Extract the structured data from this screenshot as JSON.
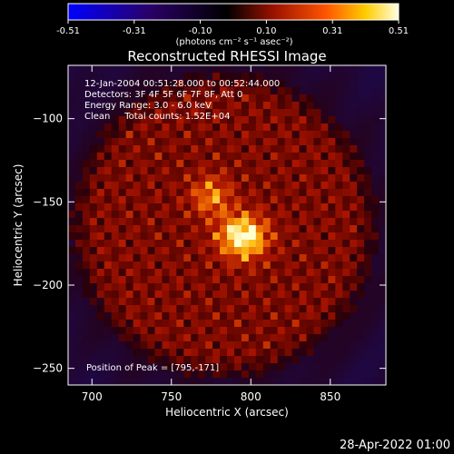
{
  "colorbar": {
    "ticks": [
      "-0.51",
      "-0.31",
      "-0.10",
      "0.10",
      "0.31",
      "0.51"
    ],
    "units": "(photons cm⁻² s⁻¹ asec⁻²)"
  },
  "chart_data": {
    "type": "heatmap",
    "title": "Reconstructed RHESSI Image",
    "xlabel": "Heliocentric X (arcsec)",
    "ylabel": "Heliocentric Y (arcsec)",
    "xlim": [
      685,
      885
    ],
    "ylim": [
      -260,
      -68
    ],
    "x_ticks": [
      700,
      750,
      800,
      850
    ],
    "y_ticks": [
      -100,
      -150,
      -200,
      -250
    ],
    "value_range": [
      -0.51,
      0.51
    ],
    "colormap": [
      "#0000ff",
      "#000000",
      "#cc0000",
      "#ffaa00",
      "#ffffe0"
    ],
    "annotations": [
      "12-Jan-2004 00:51:28.000 to 00:52:44.000",
      "Detectors: 3F 4F 5F 6F 7F 8F, Att 0",
      "Energy Range: 3.0 - 6.0 keV",
      "Clean     Total counts: 1.52E+04"
    ],
    "peak": {
      "x": 795,
      "y": -171,
      "label": "Position of Peak = [795,-171]"
    }
  },
  "footer": {
    "date": "28-Apr-2022 01:00"
  }
}
